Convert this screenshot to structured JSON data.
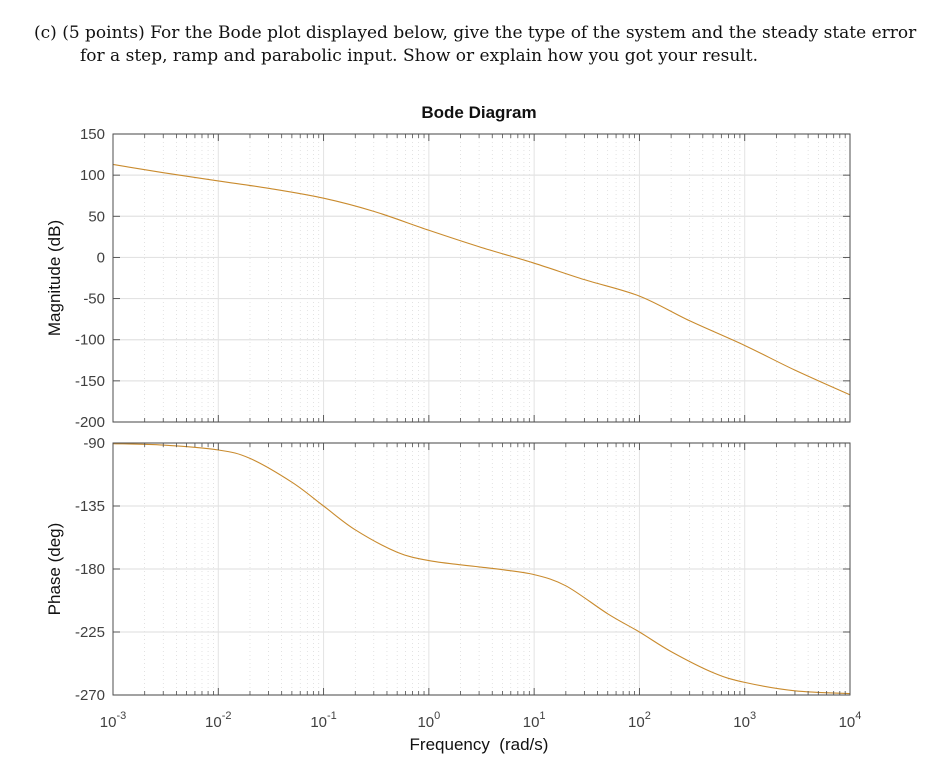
{
  "question": {
    "line1": "(c) (5 points) For the Bode plot displayed below, give the type of the system and the steady state error",
    "line2": "for a step, ramp and parabolic input. Show or explain how you got your result."
  },
  "colors": {
    "curve": "#C98B2E",
    "axis": "#4d4d4d",
    "grid_major": "#e3e3e3",
    "grid_minor": "#d0d0d0"
  },
  "chart_data": [
    {
      "type": "line",
      "title": "Bode Diagram",
      "panel": "magnitude",
      "xlabel": "Frequency  (rad/s)",
      "ylabel": "Magnitude (dB)",
      "xscale": "log",
      "xlim": [
        0.001,
        10000
      ],
      "ylim": [
        -200,
        150
      ],
      "yticks": [
        150,
        100,
        50,
        0,
        -50,
        -100,
        -150,
        -200
      ],
      "grid": true,
      "x": [
        0.001,
        0.003,
        0.01,
        0.03,
        0.1,
        0.3,
        1,
        3,
        10,
        30,
        100,
        300,
        1000,
        3000,
        10000
      ],
      "series": [
        {
          "name": "Magnitude",
          "values": [
            113,
            103,
            93,
            84,
            72,
            56,
            33,
            13,
            -7,
            -27,
            -47,
            -77,
            -107,
            -137,
            -167
          ]
        }
      ]
    },
    {
      "type": "line",
      "panel": "phase",
      "xlabel": "Frequency  (rad/s)",
      "ylabel": "Phase (deg)",
      "xscale": "log",
      "xlim": [
        0.001,
        10000
      ],
      "ylim": [
        -270,
        -90
      ],
      "yticks": [
        -90,
        -135,
        -180,
        -225,
        -270
      ],
      "xtick_labels": [
        "10^-3",
        "10^-2",
        "10^-1",
        "10^0",
        "10^1",
        "10^2",
        "10^3",
        "10^4"
      ],
      "grid": true,
      "x": [
        0.001,
        0.003,
        0.01,
        0.02,
        0.05,
        0.1,
        0.2,
        0.5,
        1,
        2,
        3,
        5,
        10,
        20,
        50,
        100,
        200,
        500,
        1000,
        3000,
        10000
      ],
      "series": [
        {
          "name": "Phase",
          "values": [
            -90.5,
            -91.5,
            -95,
            -101,
            -118,
            -135,
            -152,
            -168,
            -174,
            -177,
            -178.5,
            -180.5,
            -184,
            -192,
            -212,
            -225,
            -239,
            -254,
            -261,
            -267,
            -269
          ]
        }
      ]
    }
  ],
  "axes": {
    "mag_yticks": [
      "150",
      "100",
      "50",
      "0",
      "-50",
      "-100",
      "-150",
      "-200"
    ],
    "phase_yticks": [
      "-90",
      "-135",
      "-180",
      "-225",
      "-270"
    ],
    "x_base": "10",
    "x_exponents": [
      "-3",
      "-2",
      "-1",
      "0",
      "1",
      "2",
      "3",
      "4"
    ],
    "title": "Bode Diagram",
    "mag_ylabel": "Magnitude (dB)",
    "phase_ylabel": "Phase (deg)",
    "xlabel": "Frequency  (rad/s)"
  }
}
